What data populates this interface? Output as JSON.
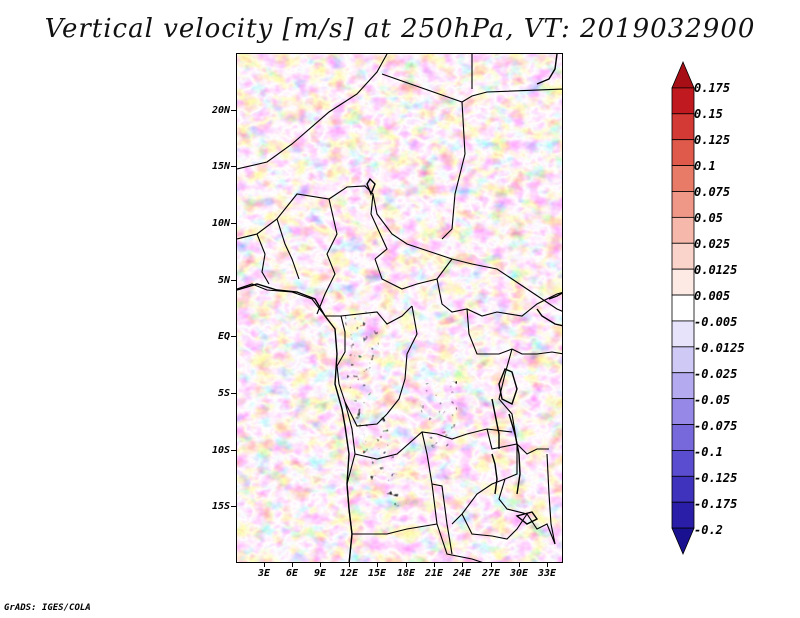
{
  "title": "Vertical velocity [m/s] at 250hPa, VT: 2019032900",
  "credit": "GrADS: IGES/COLA",
  "lat_labels": [
    "20N",
    "15N",
    "10N",
    "5N",
    "EQ",
    "5S",
    "10S",
    "15S"
  ],
  "lon_labels": [
    "3E",
    "6E",
    "9E",
    "12E",
    "15E",
    "18E",
    "21E",
    "24E",
    "27E",
    "30E",
    "33E"
  ],
  "colorbar": {
    "levels": [
      "0.175",
      "0.15",
      "0.125",
      "0.1",
      "0.075",
      "0.05",
      "0.025",
      "0.0125",
      "0.005",
      "-0.005",
      "-0.0125",
      "-0.025",
      "-0.05",
      "-0.075",
      "-0.1",
      "-0.125",
      "-0.175",
      "-0.2"
    ],
    "colors": [
      "#a50f15",
      "#c01a20",
      "#d43a35",
      "#e05a4c",
      "#e87a68",
      "#f09888",
      "#f6b8aa",
      "#fad4cb",
      "#fdeae5",
      "#ffffff",
      "#e6e3fa",
      "#cfc9f6",
      "#b3aaef",
      "#9588e6",
      "#7769dc",
      "#5a4dcf",
      "#3f33bd",
      "#2a1ea8",
      "#1a1190"
    ]
  }
}
